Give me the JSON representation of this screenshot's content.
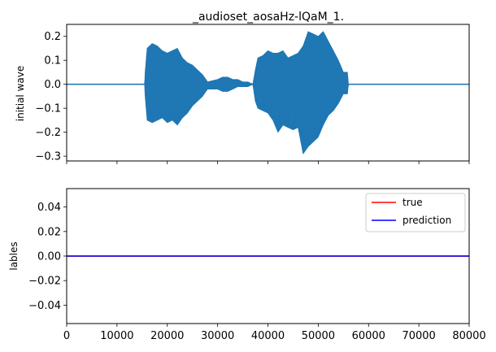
{
  "chart_data": [
    {
      "type": "line",
      "title": "_audioset_aosaHz-lQaM_1.",
      "xlabel": "",
      "ylabel": "initial wave",
      "xlim": [
        0,
        80000
      ],
      "ylim": [
        -0.32,
        0.25
      ],
      "yticks": [
        "0.2",
        "0.1",
        "0.0",
        "−0.1",
        "−0.2",
        "−0.3"
      ],
      "ytick_values": [
        0.2,
        0.1,
        0.0,
        -0.1,
        -0.2,
        -0.3
      ],
      "xtick_values": [
        0,
        10000,
        20000,
        30000,
        40000,
        50000,
        60000,
        70000,
        80000
      ],
      "xtick_labels_shown": false,
      "grid": false,
      "series": [
        {
          "color": "#1f77b4",
          "envelope": {
            "x": [
              0,
              15500,
              15600,
              16000,
              17000,
              18000,
              19000,
              20000,
              21000,
              22000,
              23000,
              24000,
              25000,
              26000,
              27000,
              28000,
              29000,
              30000,
              31000,
              32000,
              33000,
              34000,
              35000,
              36000,
              37000,
              37500,
              38000,
              39000,
              40000,
              41000,
              42000,
              43000,
              44000,
              45000,
              46000,
              47000,
              48000,
              49000,
              50000,
              51000,
              52000,
              53000,
              54000,
              55000,
              55800,
              56000,
              80000
            ],
            "upper": [
              0.0,
              0.0,
              0.05,
              0.15,
              0.17,
              0.16,
              0.14,
              0.13,
              0.14,
              0.15,
              0.11,
              0.09,
              0.08,
              0.06,
              0.04,
              0.01,
              0.015,
              0.02,
              0.03,
              0.03,
              0.02,
              0.02,
              0.01,
              0.01,
              0.0,
              0.06,
              0.11,
              0.12,
              0.14,
              0.13,
              0.13,
              0.14,
              0.11,
              0.12,
              0.13,
              0.16,
              0.22,
              0.21,
              0.2,
              0.22,
              0.18,
              0.14,
              0.1,
              0.05,
              0.05,
              0.0,
              0.0
            ],
            "lower": [
              0.0,
              0.0,
              -0.05,
              -0.15,
              -0.16,
              -0.15,
              -0.14,
              -0.16,
              -0.15,
              -0.17,
              -0.14,
              -0.12,
              -0.09,
              -0.07,
              -0.05,
              -0.02,
              -0.02,
              -0.02,
              -0.03,
              -0.03,
              -0.02,
              -0.01,
              -0.01,
              -0.01,
              0.0,
              -0.07,
              -0.1,
              -0.11,
              -0.12,
              -0.15,
              -0.2,
              -0.17,
              -0.18,
              -0.19,
              -0.18,
              -0.29,
              -0.26,
              -0.24,
              -0.22,
              -0.17,
              -0.13,
              -0.11,
              -0.08,
              -0.04,
              -0.04,
              0.0,
              0.0
            ]
          }
        }
      ]
    },
    {
      "type": "line",
      "title": "",
      "xlabel": "",
      "ylabel": "lables",
      "xlim": [
        0,
        80000
      ],
      "ylim": [
        -0.055,
        0.055
      ],
      "yticks": [
        "0.04",
        "0.02",
        "0.00",
        "−0.02",
        "−0.04"
      ],
      "ytick_values": [
        0.04,
        0.02,
        0.0,
        -0.02,
        -0.04
      ],
      "xticks": [
        "0",
        "10000",
        "20000",
        "30000",
        "40000",
        "50000",
        "60000",
        "70000",
        "80000"
      ],
      "xtick_values": [
        0,
        10000,
        20000,
        30000,
        40000,
        50000,
        60000,
        70000,
        80000
      ],
      "grid": false,
      "legend": "upper right",
      "series": [
        {
          "name": "true",
          "color": "#ff0000",
          "x": [
            0,
            80000
          ],
          "y": [
            0,
            0
          ]
        },
        {
          "name": "prediction",
          "color": "#0000ff",
          "x": [
            0,
            80000
          ],
          "y": [
            0,
            0
          ]
        }
      ]
    }
  ]
}
